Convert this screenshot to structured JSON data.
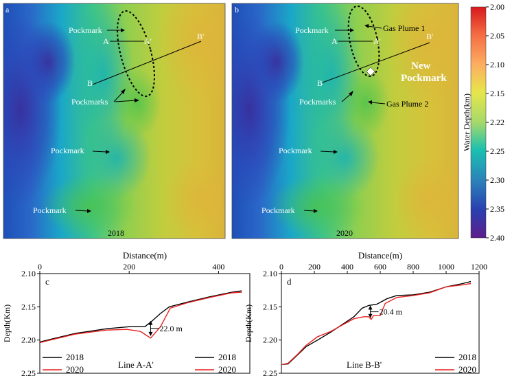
{
  "panel_a": {
    "letter": "a",
    "year": "2018",
    "labels": {
      "pockmark_top": "Pockmark",
      "A": "A",
      "A_prime": "A'",
      "B": "B",
      "B_prime": "B'",
      "pockmarks": "Pockmarks",
      "pockmark_mid": "Pockmark",
      "pockmark_low": "Pockmark"
    }
  },
  "panel_b": {
    "letter": "b",
    "year": "2020",
    "labels": {
      "pockmark_top": "Pockmark",
      "gas_plume_1": "Gas Plume 1",
      "A": "A",
      "A_prime": "A'",
      "B": "B",
      "B_prime": "B'",
      "new_pockmark_1": "New",
      "new_pockmark_2": "Pockmark",
      "pockmarks": "Pockmarks",
      "gas_plume_2": "Gas Plume 2",
      "pockmark_mid": "Pockmark",
      "pockmark_low": "Pockmark"
    }
  },
  "colorbar": {
    "label": "Water Depth(km)",
    "ticks": [
      "2.00",
      "2.05",
      "2.10",
      "2.15",
      "2.22",
      "2.25",
      "2.30",
      "2.35",
      "2.40"
    ],
    "colors": [
      "#d7191c",
      "#f46d43",
      "#fdae61",
      "#e6e64c",
      "#a6d96a",
      "#1ac0b0",
      "#2b83ba",
      "#2a3fb0",
      "#5e1e8c"
    ]
  },
  "chart_data": [
    {
      "type": "line",
      "panel": "c",
      "line_label": "Line A-A'",
      "xlabel": "Distance(m)",
      "ylabel": "Depth(Km)",
      "xlim": [
        0,
        470
      ],
      "ylim": [
        2.25,
        2.1
      ],
      "x_ticks": [
        "0",
        "200",
        "400"
      ],
      "y_ticks": [
        "2.10",
        "2.15",
        "2.20",
        "2.25"
      ],
      "annotation": "22.0 m",
      "series": [
        {
          "name": "2018",
          "color": "#000000",
          "points": [
            [
              0,
              2.203
            ],
            [
              30,
              2.198
            ],
            [
              80,
              2.19
            ],
            [
              150,
              2.183
            ],
            [
              200,
              2.18
            ],
            [
              235,
              2.18
            ],
            [
              250,
              2.172
            ],
            [
              270,
              2.16
            ],
            [
              290,
              2.15
            ],
            [
              330,
              2.143
            ],
            [
              380,
              2.135
            ],
            [
              430,
              2.128
            ],
            [
              452,
              2.126
            ]
          ]
        },
        {
          "name": "2020",
          "color": "#e8201e",
          "points": [
            [
              0,
              2.204
            ],
            [
              30,
              2.199
            ],
            [
              80,
              2.191
            ],
            [
              150,
              2.185
            ],
            [
              195,
              2.184
            ],
            [
              225,
              2.187
            ],
            [
              248,
              2.197
            ],
            [
              270,
              2.18
            ],
            [
              292,
              2.152
            ],
            [
              330,
              2.144
            ],
            [
              380,
              2.136
            ],
            [
              430,
              2.129
            ],
            [
              452,
              2.128
            ]
          ]
        }
      ],
      "legend": [
        {
          "name": "2018",
          "color": "#000000"
        },
        {
          "name": "2020",
          "color": "#e8201e"
        },
        {
          "name": "2018",
          "color": "#000000"
        },
        {
          "name": "2020",
          "color": "#e8201e"
        }
      ]
    },
    {
      "type": "line",
      "panel": "d",
      "line_label": "Line B-B'",
      "xlabel": "Distance(m)",
      "ylabel": "Depth(Km)",
      "xlim": [
        0,
        1200
      ],
      "ylim": [
        2.25,
        2.1
      ],
      "x_ticks": [
        "0",
        "200",
        "400",
        "600",
        "800",
        "1000",
        "1200"
      ],
      "y_ticks": [
        "2.10",
        "2.15",
        "2.20",
        "2.25"
      ],
      "annotation": "20.4 m",
      "series": [
        {
          "name": "2018",
          "color": "#000000",
          "points": [
            [
              0,
              2.237
            ],
            [
              40,
              2.236
            ],
            [
              100,
              2.222
            ],
            [
              150,
              2.21
            ],
            [
              220,
              2.2
            ],
            [
              300,
              2.188
            ],
            [
              380,
              2.175
            ],
            [
              440,
              2.165
            ],
            [
              490,
              2.152
            ],
            [
              530,
              2.148
            ],
            [
              580,
              2.146
            ],
            [
              640,
              2.138
            ],
            [
              700,
              2.133
            ],
            [
              800,
              2.132
            ],
            [
              900,
              2.128
            ],
            [
              1000,
              2.12
            ],
            [
              1100,
              2.115
            ],
            [
              1150,
              2.112
            ]
          ]
        },
        {
          "name": "2020",
          "color": "#e8201e",
          "points": [
            [
              0,
              2.237
            ],
            [
              40,
              2.235
            ],
            [
              100,
              2.221
            ],
            [
              150,
              2.208
            ],
            [
              220,
              2.195
            ],
            [
              300,
              2.187
            ],
            [
              380,
              2.176
            ],
            [
              440,
              2.168
            ],
            [
              500,
              2.165
            ],
            [
              530,
              2.165
            ],
            [
              545,
              2.169
            ],
            [
              560,
              2.163
            ],
            [
              600,
              2.163
            ],
            [
              630,
              2.145
            ],
            [
              700,
              2.136
            ],
            [
              800,
              2.133
            ],
            [
              900,
              2.129
            ],
            [
              1000,
              2.12
            ],
            [
              1100,
              2.117
            ],
            [
              1150,
              2.115
            ]
          ]
        }
      ],
      "legend": [
        {
          "name": "2018",
          "color": "#000000"
        },
        {
          "name": "2020",
          "color": "#e8201e"
        }
      ]
    }
  ]
}
